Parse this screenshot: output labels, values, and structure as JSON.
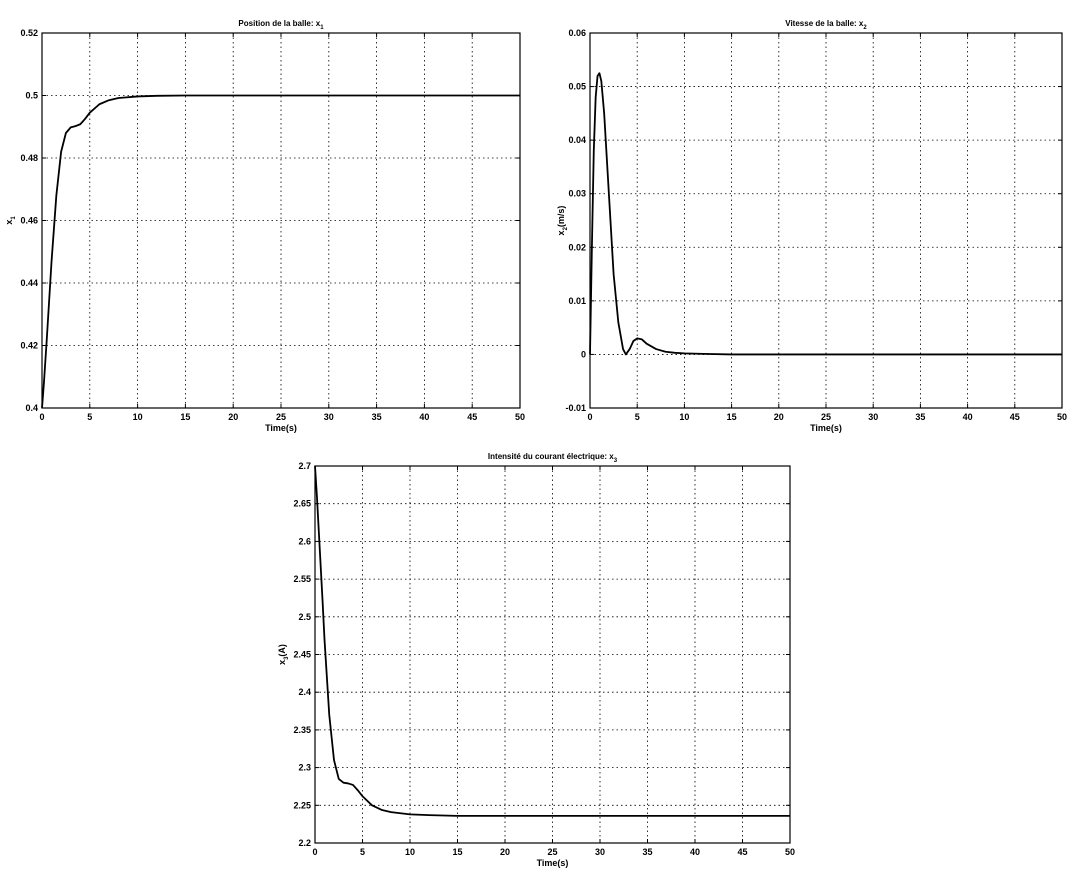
{
  "chart_data": [
    {
      "type": "line",
      "title": "Position de la balle: x",
      "title_sub": "1",
      "xlabel": "Time(s)",
      "ylabel": "x",
      "ylabel_sub": "1",
      "ylabel_suffix": "",
      "xlim": [
        0,
        50
      ],
      "ylim": [
        0.4,
        0.52
      ],
      "xticks": [
        0,
        5,
        10,
        15,
        20,
        25,
        30,
        35,
        40,
        45,
        50
      ],
      "yticks": [
        0.4,
        0.42,
        0.44,
        0.46,
        0.48,
        0.5,
        0.52
      ],
      "ytick_labels": [
        "0.4",
        "0.42",
        "0.44",
        "0.46",
        "0.48",
        "0.5",
        "0.52"
      ],
      "grid": true,
      "series": [
        {
          "x": [
            0,
            0.2,
            0.5,
            0.8,
            1.0,
            1.5,
            2.0,
            2.5,
            3.0,
            3.5,
            4.0,
            4.5,
            5.0,
            6.0,
            7.0,
            8.0,
            10.0,
            12.0,
            15.0,
            20.0,
            30.0,
            40.0,
            50.0
          ],
          "y": [
            0.4,
            0.408,
            0.422,
            0.437,
            0.447,
            0.468,
            0.482,
            0.488,
            0.4898,
            0.4902,
            0.4908,
            0.4925,
            0.4945,
            0.4972,
            0.4985,
            0.4992,
            0.4997,
            0.4999,
            0.5,
            0.5,
            0.5,
            0.5,
            0.5
          ]
        }
      ]
    },
    {
      "type": "line",
      "title": "Vitesse de la balle: x",
      "title_sub": "2",
      "xlabel": "Time(s)",
      "ylabel": "x",
      "ylabel_sub": "2",
      "ylabel_suffix": "(m/s)",
      "xlim": [
        0,
        50
      ],
      "ylim": [
        -0.01,
        0.06
      ],
      "xticks": [
        0,
        5,
        10,
        15,
        20,
        25,
        30,
        35,
        40,
        45,
        50
      ],
      "yticks": [
        -0.01,
        0,
        0.01,
        0.02,
        0.03,
        0.04,
        0.05,
        0.06
      ],
      "ytick_labels": [
        "-0.01",
        "0",
        "0.01",
        "0.02",
        "0.03",
        "0.04",
        "0.05",
        "0.06"
      ],
      "grid": true,
      "series": [
        {
          "x": [
            0,
            0.2,
            0.4,
            0.6,
            0.8,
            1.0,
            1.2,
            1.5,
            2.0,
            2.5,
            3.0,
            3.5,
            3.8,
            4.2,
            4.6,
            5.0,
            5.5,
            6.0,
            7.0,
            8.0,
            9.0,
            10.0,
            12.0,
            15.0,
            20.0,
            30.0,
            40.0,
            50.0
          ],
          "y": [
            0.0,
            0.02,
            0.038,
            0.048,
            0.052,
            0.0525,
            0.051,
            0.045,
            0.03,
            0.015,
            0.006,
            0.001,
            0.0,
            0.001,
            0.0025,
            0.003,
            0.0028,
            0.002,
            0.001,
            0.0005,
            0.0003,
            0.0002,
            0.0001,
            0.0,
            0.0,
            0.0,
            0.0,
            0.0
          ]
        }
      ]
    },
    {
      "type": "line",
      "title": "Intensité du courant électrique: x",
      "title_sub": "3",
      "xlabel": "Time(s)",
      "ylabel": "x",
      "ylabel_sub": "3",
      "ylabel_suffix": "(A)",
      "xlim": [
        0,
        50
      ],
      "ylim": [
        2.2,
        2.7
      ],
      "xticks": [
        0,
        5,
        10,
        15,
        20,
        25,
        30,
        35,
        40,
        45,
        50
      ],
      "yticks": [
        2.2,
        2.25,
        2.3,
        2.35,
        2.4,
        2.45,
        2.5,
        2.55,
        2.6,
        2.65,
        2.7
      ],
      "ytick_labels": [
        "2.2",
        "2.25",
        "2.3",
        "2.35",
        "2.4",
        "2.45",
        "2.5",
        "2.55",
        "2.6",
        "2.65",
        "2.7"
      ],
      "grid": true,
      "series": [
        {
          "x": [
            0,
            0.2,
            0.5,
            0.8,
            1.0,
            1.5,
            2.0,
            2.5,
            3.0,
            3.5,
            4.0,
            4.5,
            5.0,
            6.0,
            7.0,
            8.0,
            10.0,
            12.0,
            15.0,
            20.0,
            30.0,
            40.0,
            50.0
          ],
          "y": [
            2.7,
            2.66,
            2.59,
            2.52,
            2.47,
            2.37,
            2.31,
            2.285,
            2.28,
            2.279,
            2.277,
            2.27,
            2.262,
            2.25,
            2.244,
            2.241,
            2.238,
            2.237,
            2.236,
            2.236,
            2.236,
            2.236,
            2.236
          ]
        }
      ]
    }
  ]
}
